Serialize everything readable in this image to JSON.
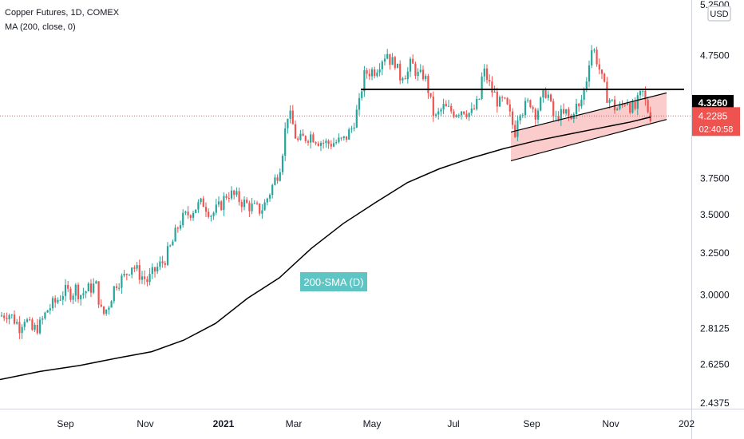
{
  "legend": {
    "title": "Copper Futures, 1D, COMEX",
    "ma": "MA (200, close, 0)"
  },
  "colors": {
    "up": "#26a69a",
    "down": "#ef5350",
    "ma": "#000000",
    "resistance": "#000000",
    "channel_fill": "#f8b7b7",
    "annotation_bg": "#5fc4c4",
    "last_price_bg": "#ef5350",
    "level_bg": "#000000"
  },
  "chart_data": {
    "type": "candlestick",
    "instrument": "Copper Futures, 1D, COMEX",
    "currency": "USD",
    "y_axis_scale": "log",
    "ylim": [
      2.4375,
      5.25
    ],
    "y_ticks": [
      "5.2500",
      "4.7500",
      "3.7500",
      "3.5000",
      "3.2500",
      "3.0000",
      "2.8125",
      "2.6250",
      "2.4375"
    ],
    "x_ticks": [
      "Sep",
      "Nov",
      "2021",
      "Mar",
      "May",
      "Jul",
      "Sep",
      "Nov",
      "202"
    ],
    "price_tags": {
      "level": "4.3260",
      "last": "4.2285",
      "countdown": "02:40:58"
    },
    "annotation": "200-SMA (D)",
    "close_path": [
      [
        0,
        2.88
      ],
      [
        10,
        2.9
      ],
      [
        20,
        2.85
      ],
      [
        25,
        2.82
      ],
      [
        30,
        2.88
      ],
      [
        40,
        2.8
      ],
      [
        50,
        2.83
      ],
      [
        60,
        2.92
      ],
      [
        70,
        2.96
      ],
      [
        80,
        3.02
      ],
      [
        90,
        3.01
      ],
      [
        95,
        3.04
      ],
      [
        100,
        3.0
      ],
      [
        110,
        3.03
      ],
      [
        120,
        3.06
      ],
      [
        128,
        2.88
      ],
      [
        135,
        2.93
      ],
      [
        145,
        3.07
      ],
      [
        155,
        3.1
      ],
      [
        165,
        3.18
      ],
      [
        175,
        3.12
      ],
      [
        185,
        3.08
      ],
      [
        195,
        3.15
      ],
      [
        205,
        3.2
      ],
      [
        215,
        3.3
      ],
      [
        225,
        3.45
      ],
      [
        235,
        3.5
      ],
      [
        245,
        3.55
      ],
      [
        255,
        3.58
      ],
      [
        265,
        3.5
      ],
      [
        275,
        3.55
      ],
      [
        285,
        3.65
      ],
      [
        295,
        3.62
      ],
      [
        305,
        3.58
      ],
      [
        315,
        3.55
      ],
      [
        325,
        3.53
      ],
      [
        330,
        3.55
      ],
      [
        340,
        3.68
      ],
      [
        350,
        3.82
      ],
      [
        355,
        4.0
      ],
      [
        360,
        4.25
      ],
      [
        365,
        4.2
      ],
      [
        372,
        4.02
      ],
      [
        380,
        4.05
      ],
      [
        390,
        4.08
      ],
      [
        400,
        4.03
      ],
      [
        410,
        4.01
      ],
      [
        420,
        4.02
      ],
      [
        430,
        4.03
      ],
      [
        440,
        4.12
      ],
      [
        450,
        4.32
      ],
      [
        455,
        4.55
      ],
      [
        460,
        4.6
      ],
      [
        470,
        4.62
      ],
      [
        478,
        4.72
      ],
      [
        485,
        4.78
      ],
      [
        490,
        4.68
      ],
      [
        495,
        4.7
      ],
      [
        500,
        4.55
      ],
      [
        505,
        4.6
      ],
      [
        510,
        4.58
      ],
      [
        515,
        4.68
      ],
      [
        520,
        4.62
      ],
      [
        525,
        4.55
      ],
      [
        530,
        4.58
      ],
      [
        535,
        4.5
      ],
      [
        540,
        4.32
      ],
      [
        545,
        4.2
      ],
      [
        550,
        4.25
      ],
      [
        555,
        4.3
      ],
      [
        560,
        4.28
      ],
      [
        570,
        4.26
      ],
      [
        580,
        4.29
      ],
      [
        590,
        4.24
      ],
      [
        600,
        4.35
      ],
      [
        605,
        4.62
      ],
      [
        610,
        4.55
      ],
      [
        615,
        4.45
      ],
      [
        620,
        4.4
      ],
      [
        625,
        4.32
      ],
      [
        630,
        4.35
      ],
      [
        635,
        4.3
      ],
      [
        640,
        4.2
      ],
      [
        645,
        4.1
      ],
      [
        650,
        4.3
      ],
      [
        655,
        4.28
      ],
      [
        660,
        4.32
      ],
      [
        665,
        4.35
      ],
      [
        670,
        4.25
      ],
      [
        675,
        4.3
      ],
      [
        680,
        4.38
      ],
      [
        685,
        4.45
      ],
      [
        690,
        4.3
      ],
      [
        695,
        4.18
      ],
      [
        700,
        4.25
      ],
      [
        705,
        4.22
      ],
      [
        710,
        4.26
      ],
      [
        715,
        4.18
      ],
      [
        720,
        4.32
      ],
      [
        725,
        4.28
      ],
      [
        730,
        4.4
      ],
      [
        735,
        4.55
      ],
      [
        740,
        4.82
      ],
      [
        745,
        4.78
      ],
      [
        750,
        4.65
      ],
      [
        755,
        4.5
      ],
      [
        760,
        4.4
      ],
      [
        765,
        4.35
      ],
      [
        770,
        4.3
      ],
      [
        775,
        4.28
      ],
      [
        780,
        4.32
      ],
      [
        785,
        4.38
      ],
      [
        790,
        4.3
      ],
      [
        795,
        4.28
      ],
      [
        800,
        4.36
      ],
      [
        805,
        4.42
      ],
      [
        810,
        4.3
      ],
      [
        815,
        4.23
      ]
    ],
    "sma200": [
      [
        0,
        2.55
      ],
      [
        50,
        2.59
      ],
      [
        100,
        2.62
      ],
      [
        150,
        2.66
      ],
      [
        190,
        2.69
      ],
      [
        230,
        2.75
      ],
      [
        270,
        2.84
      ],
      [
        310,
        2.98
      ],
      [
        350,
        3.1
      ],
      [
        390,
        3.28
      ],
      [
        430,
        3.44
      ],
      [
        470,
        3.58
      ],
      [
        510,
        3.72
      ],
      [
        550,
        3.82
      ],
      [
        590,
        3.9
      ],
      [
        630,
        3.97
      ],
      [
        670,
        4.03
      ],
      [
        710,
        4.08
      ],
      [
        750,
        4.13
      ],
      [
        790,
        4.18
      ],
      [
        815,
        4.22
      ]
    ],
    "resistance_level": 4.45,
    "channel": {
      "lower": [
        [
          640,
          3.88
        ],
        [
          835,
          4.2
        ]
      ],
      "upper": [
        [
          640,
          4.1
        ],
        [
          835,
          4.42
        ]
      ]
    },
    "current_price_line": 4.2285
  }
}
